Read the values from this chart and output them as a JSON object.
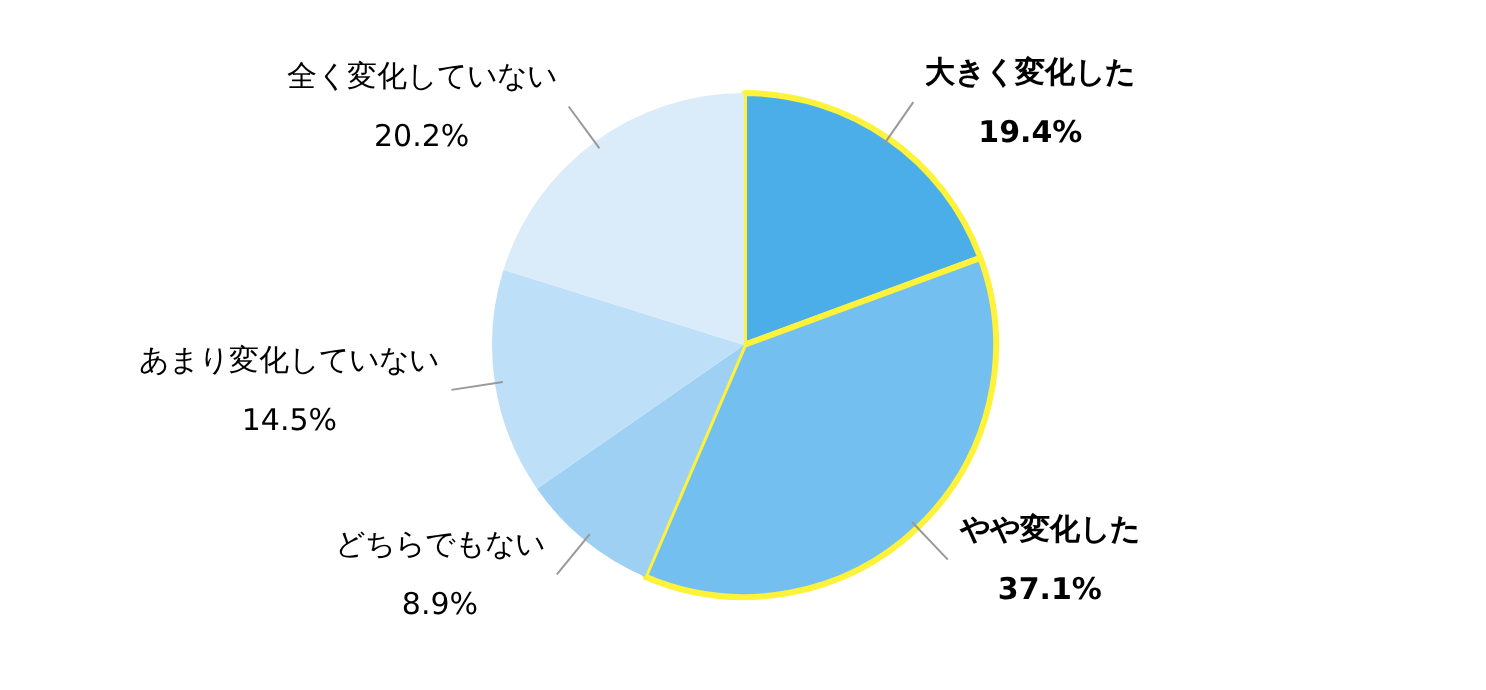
{
  "chart_data": {
    "type": "pie",
    "categories": [
      "大きく変化した",
      "やや変化した",
      "どちらでもない",
      "あまり変化していない",
      "全く変化していない"
    ],
    "values": [
      19.4,
      37.1,
      8.9,
      14.5,
      20.2
    ],
    "value_labels": [
      "19.4%",
      "37.1%",
      "8.9%",
      "14.5%",
      "20.2%"
    ],
    "colors": [
      "#4baee8",
      "#73bfef",
      "#9dd0f3",
      "#bddff7",
      "#daecf9"
    ],
    "legend": false
  }
}
